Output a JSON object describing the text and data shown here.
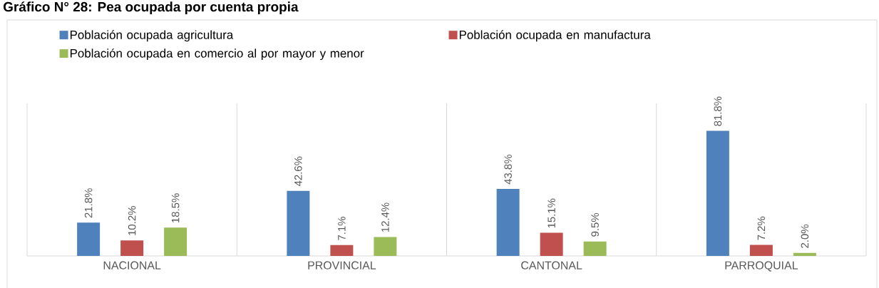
{
  "chart_data": {
    "type": "bar",
    "title": "Gráfico N° 28: Pea ocupada por cuenta propia",
    "categories": [
      "NACIONAL",
      "PROVINCIAL",
      "CANTONAL",
      "PARROQUIAL"
    ],
    "series": [
      {
        "name": "Población ocupada agricultura",
        "color": "#4f81bd",
        "values": [
          21.8,
          42.6,
          43.8,
          81.8
        ],
        "value_labels": [
          "21.8%",
          "42.6%",
          "43.8%",
          "81.8%"
        ]
      },
      {
        "name": "Población ocupada en manufactura",
        "color": "#c0504d",
        "values": [
          10.2,
          7.1,
          15.1,
          7.2
        ],
        "value_labels": [
          "10.2%",
          "7.1%",
          "15.1%",
          "7.2%"
        ]
      },
      {
        "name": "Población ocupada en comercio al por mayor y menor",
        "color": "#9bbb59",
        "values": [
          18.5,
          12.4,
          9.5,
          2.0
        ],
        "value_labels": [
          "18.5%",
          "12.4%",
          "9.5%",
          "2.0%"
        ]
      }
    ],
    "legend": "top"
  }
}
